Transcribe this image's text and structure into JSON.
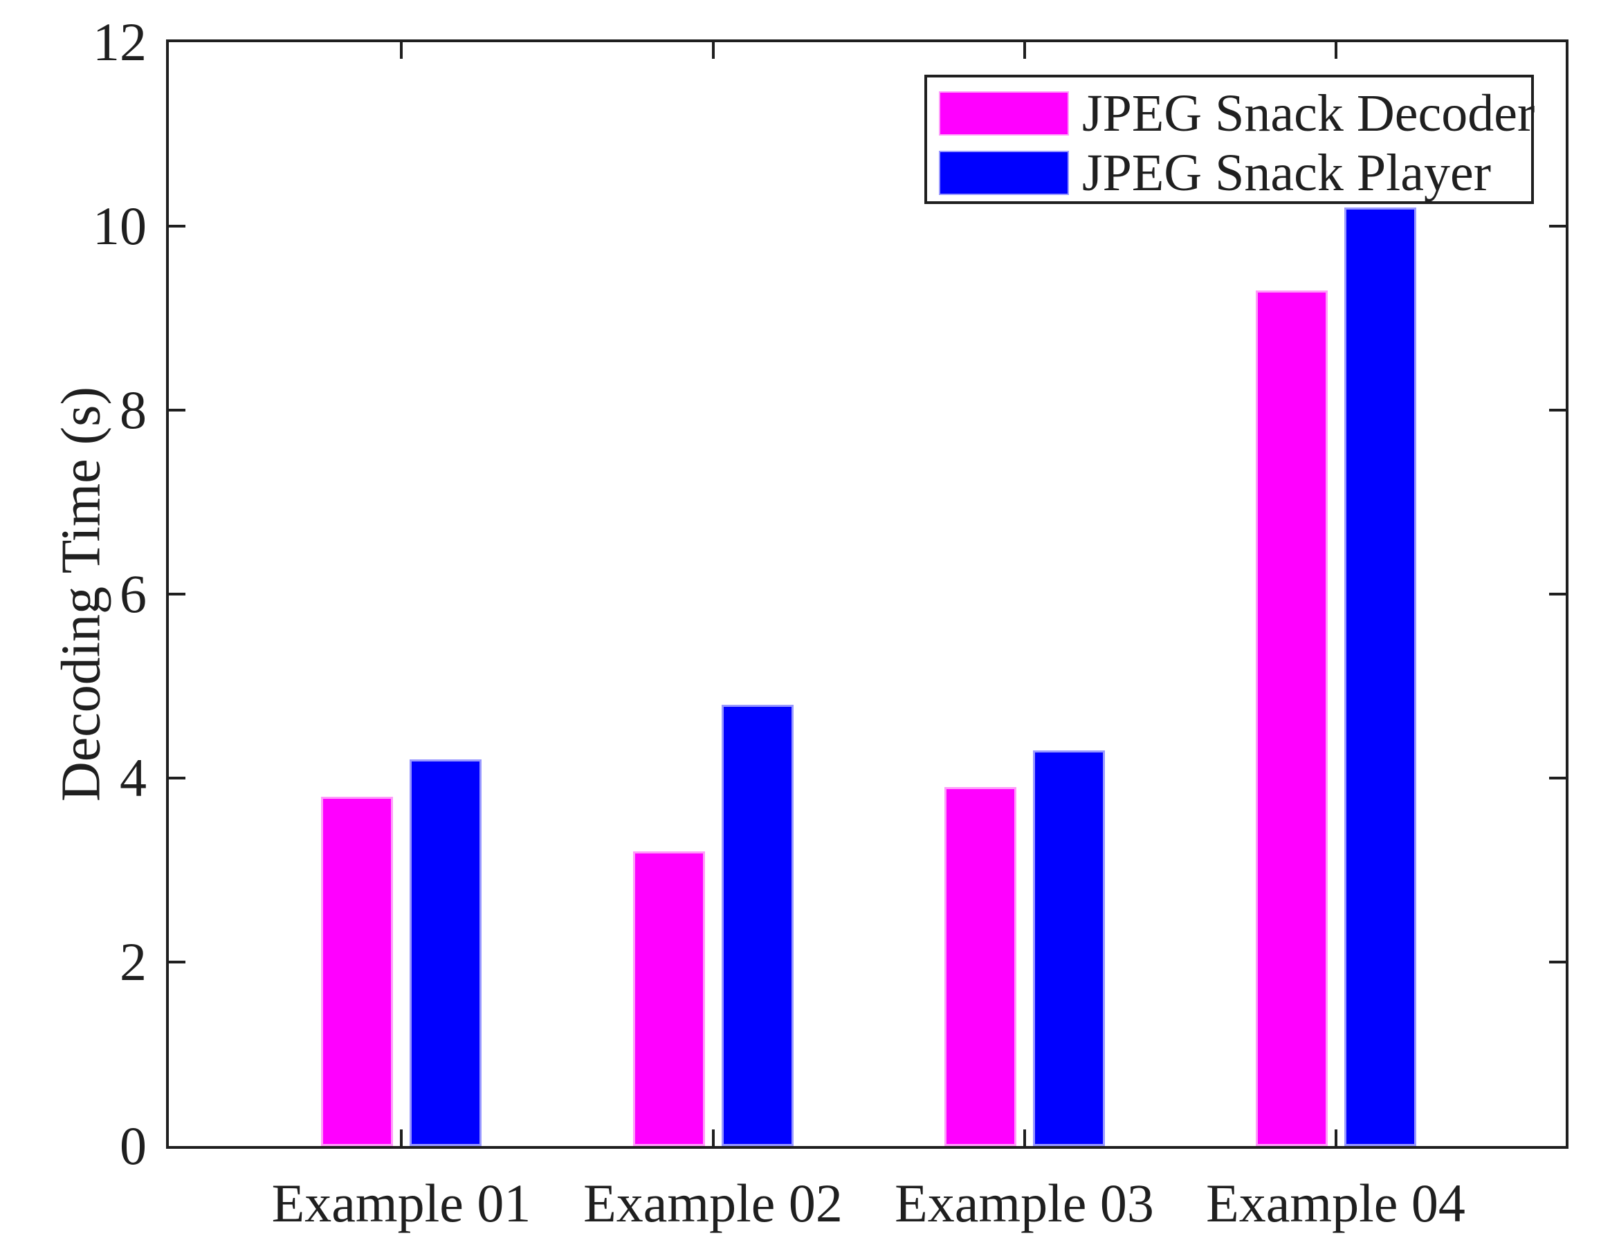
{
  "chart_data": {
    "type": "bar",
    "title": "",
    "categories": [
      "Example 01",
      "Example 02",
      "Example 03",
      "Example 04"
    ],
    "series": [
      {
        "name": "JPEG Snack Decoder",
        "color": "#ff00ff",
        "edge_color": "#ff9bfa",
        "values": [
          3.8,
          3.2,
          3.9,
          9.3
        ]
      },
      {
        "name": "JPEG Snack Player",
        "color": "#0000ff",
        "edge_color": "#9898ff",
        "values": [
          4.2,
          4.8,
          4.3,
          10.2
        ]
      }
    ],
    "xlabel": "",
    "ylabel": "Decoding Time (s)",
    "ylim": [
      0,
      12
    ],
    "yticks": [
      0,
      2,
      4,
      6,
      8,
      10,
      12
    ],
    "ytick_labels": [
      "0",
      "2",
      "4",
      "6",
      "8",
      "10",
      "12"
    ],
    "grid": false,
    "legend_position": "top-right",
    "legend_box": true,
    "colors": {
      "axis": "#1f1f1f",
      "text": "#1f1f1f",
      "background": "#ffffff"
    }
  }
}
